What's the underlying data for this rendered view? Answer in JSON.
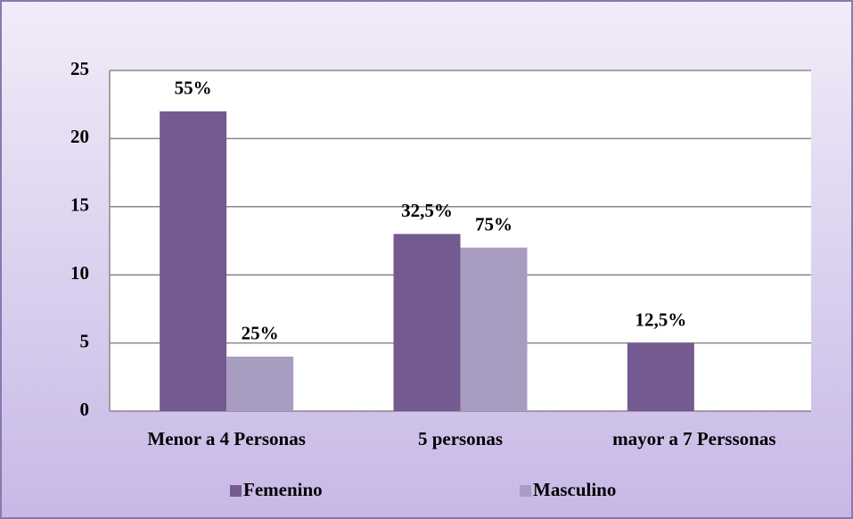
{
  "chart_data": {
    "type": "bar",
    "categories": [
      "Menor a 4 Personas",
      "5  personas",
      "mayor a 7 Perssonas"
    ],
    "series": [
      {
        "name": "Femenino",
        "color": "#735a91",
        "values": [
          22,
          13,
          5
        ],
        "value_labels": [
          "55%",
          "32,5%",
          "12,5%"
        ]
      },
      {
        "name": "Masculino",
        "color": "#a99cc1",
        "values": [
          4,
          12,
          null
        ],
        "value_labels": [
          "25%",
          "75%",
          null
        ]
      }
    ],
    "ylim": [
      0,
      25
    ],
    "yticks": [
      0,
      5,
      10,
      15,
      20,
      25
    ],
    "grid": true,
    "legend": "bottom"
  }
}
